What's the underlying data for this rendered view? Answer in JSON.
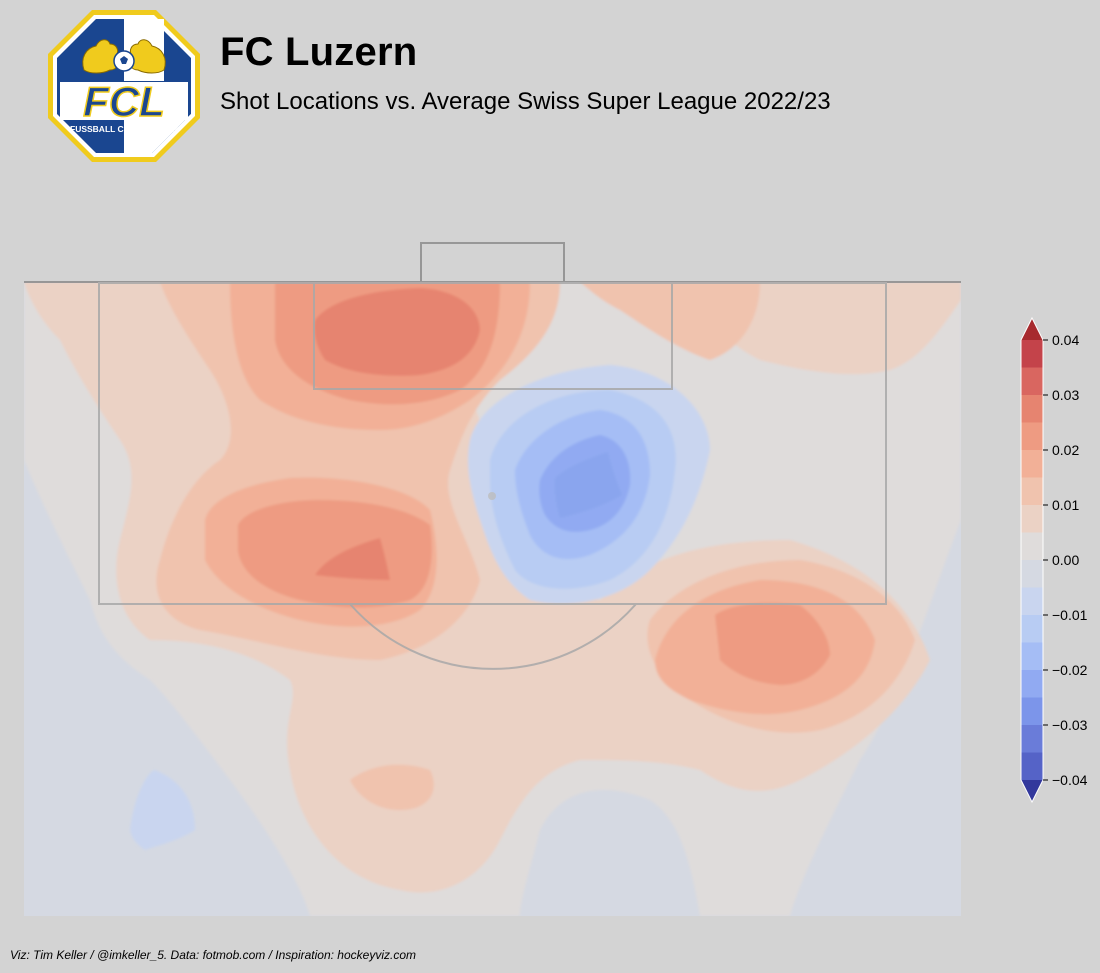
{
  "header": {
    "title": "FC Luzern",
    "subtitle": "Shot Locations vs. Average Swiss Super League 2022/23"
  },
  "logo": {
    "text_main": "FCL",
    "text_ring": "FUSSBALL CLUB LUZERN",
    "colors": {
      "navy": "#1a4690",
      "gold": "#f0cb1d",
      "white": "#ffffff"
    }
  },
  "footer": {
    "credit": "Viz: Tim Keller / @imkeller_5. Data: fotmob.com / Inspiration: hockeyviz.com"
  },
  "chart_data": {
    "type": "heatmap",
    "description_of_values": "difference in shot density, FC Luzern minus league average",
    "colorbar": {
      "ticks": [
        0.04,
        0.03,
        0.02,
        0.01,
        0.0,
        -0.01,
        -0.02,
        -0.03,
        -0.04
      ],
      "tick_labels": [
        "0.04",
        "0.03",
        "0.02",
        "0.01",
        "0.00",
        "−0.01",
        "−0.02",
        "−0.03",
        "−0.04"
      ],
      "range": [
        -0.04,
        0.04
      ],
      "extend": "both",
      "levels": [
        {
          "lo": 0.035,
          "hi": 0.04,
          "color": "#c4434a"
        },
        {
          "lo": 0.03,
          "hi": 0.035,
          "color": "#d96660"
        },
        {
          "lo": 0.025,
          "hi": 0.03,
          "color": "#e68470"
        },
        {
          "lo": 0.02,
          "hi": 0.025,
          "color": "#ee9b82"
        },
        {
          "lo": 0.015,
          "hi": 0.02,
          "color": "#f2b097"
        },
        {
          "lo": 0.01,
          "hi": 0.015,
          "color": "#f0c3ae"
        },
        {
          "lo": 0.005,
          "hi": 0.01,
          "color": "#ebd2c5"
        },
        {
          "lo": 0.0,
          "hi": 0.005,
          "color": "#dfdcdb"
        },
        {
          "lo": -0.005,
          "hi": 0.0,
          "color": "#d5d9e2"
        },
        {
          "lo": -0.01,
          "hi": -0.005,
          "color": "#c9d5ef"
        },
        {
          "lo": -0.015,
          "hi": -0.01,
          "color": "#b8ccf3"
        },
        {
          "lo": -0.02,
          "hi": -0.015,
          "color": "#a5bdf5"
        },
        {
          "lo": -0.025,
          "hi": -0.02,
          "color": "#91aaf2"
        },
        {
          "lo": -0.03,
          "hi": -0.025,
          "color": "#7c95ea"
        },
        {
          "lo": -0.035,
          "hi": -0.03,
          "color": "#6a7cd9"
        },
        {
          "lo": -0.04,
          "hi": -0.035,
          "color": "#5563c7"
        }
      ],
      "extend_max_color": "#a72a2e",
      "extend_min_color": "#33389c"
    },
    "pitch": {
      "half": "attacking",
      "orientation": "vertical",
      "background": "#d5d9e2"
    },
    "hotspots": [
      {
        "name": "central six-yard",
        "level": 0.03
      },
      {
        "name": "left edge of box",
        "level": 0.03
      },
      {
        "name": "right outside box",
        "level": 0.025
      },
      {
        "name": "left deep",
        "level": 0.015
      },
      {
        "name": "central penalty area",
        "level": -0.03
      },
      {
        "name": "far left wide",
        "level": -0.01
      }
    ]
  }
}
